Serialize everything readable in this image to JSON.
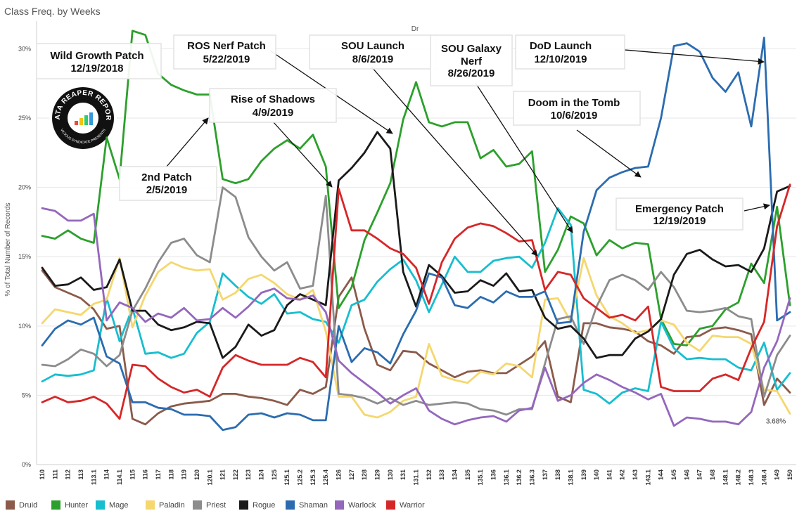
{
  "chart_data": {
    "type": "line",
    "title": "Class Freq. by Weeks",
    "column_header": "Dr",
    "ylabel": "% of Total Number of Records",
    "ylim": [
      0,
      32
    ],
    "yticks": [
      0,
      5,
      10,
      15,
      20,
      25,
      30
    ],
    "ytick_labels": [
      "0%",
      "5%",
      "10%",
      "15%",
      "20%",
      "25%",
      "30%"
    ],
    "grid": true,
    "legend_position": "bottom",
    "categories": [
      "110",
      "111",
      "112",
      "113",
      "113.1",
      "114",
      "114.1",
      "115",
      "116",
      "117",
      "118",
      "119",
      "120",
      "120.1",
      "121",
      "122",
      "123",
      "124",
      "125",
      "125.1",
      "125.2",
      "125.3",
      "125.4",
      "126",
      "127",
      "128",
      "129",
      "130",
      "131",
      "131.1",
      "132",
      "133",
      "134",
      "135",
      "135.1",
      "136",
      "136.1",
      "136.2",
      "136.3",
      "137",
      "138",
      "138.1",
      "139",
      "140",
      "141",
      "142",
      "143",
      "143.1",
      "144",
      "145",
      "146",
      "147",
      "148",
      "148.1",
      "148.2",
      "148.3",
      "148.4",
      "149",
      "150"
    ],
    "series": [
      {
        "name": "Druid",
        "color": "#8B5A4A",
        "values": [
          14.0,
          12.8,
          12.4,
          12.0,
          11.2,
          9.8,
          10.0,
          3.3,
          2.9,
          3.7,
          4.2,
          4.4,
          4.5,
          4.6,
          5.1,
          5.1,
          4.9,
          4.8,
          4.6,
          4.3,
          5.4,
          5.1,
          5.6,
          12.1,
          13.5,
          9.8,
          7.2,
          6.8,
          8.2,
          8.1,
          7.3,
          6.8,
          6.3,
          6.7,
          6.8,
          6.6,
          6.6,
          7.2,
          7.8,
          8.9,
          4.9,
          4.5,
          10.2,
          10.2,
          9.9,
          9.8,
          9.6,
          8.9,
          8.6,
          8.0,
          9.2,
          9.3,
          9.8,
          9.9,
          9.7,
          9.4,
          4.3,
          6.2,
          5.2
        ]
      },
      {
        "name": "Hunter",
        "color": "#2CA02C",
        "values": [
          16.5,
          16.3,
          16.9,
          16.3,
          16.0,
          23.6,
          20.6,
          31.3,
          31.0,
          28.2,
          27.4,
          27.0,
          26.7,
          26.7,
          20.6,
          20.3,
          20.6,
          21.9,
          22.8,
          23.4,
          22.8,
          23.8,
          21.5,
          11.3,
          12.8,
          16.2,
          18.2,
          20.3,
          24.9,
          27.6,
          24.7,
          24.4,
          24.7,
          24.7,
          22.1,
          22.7,
          21.5,
          21.7,
          22.6,
          13.9,
          15.5,
          17.9,
          17.4,
          15.1,
          16.2,
          15.6,
          16.0,
          15.9,
          10.5,
          8.7,
          8.6,
          9.8,
          10.0,
          11.2,
          11.7,
          14.5,
          13.1,
          18.6,
          11.5
        ]
      },
      {
        "name": "Mage",
        "color": "#17BECF",
        "values": [
          6.0,
          6.5,
          6.4,
          6.5,
          6.8,
          12.0,
          8.9,
          11.3,
          8.0,
          8.1,
          7.7,
          8.0,
          9.5,
          10.3,
          13.8,
          12.9,
          12.1,
          11.6,
          12.3,
          10.9,
          11.0,
          10.5,
          10.3,
          8.8,
          11.5,
          11.9,
          13.2,
          14.1,
          14.8,
          13.3,
          11.0,
          13.0,
          15.0,
          13.9,
          13.9,
          14.7,
          14.9,
          15.0,
          14.2,
          16.0,
          18.5,
          17.3,
          5.4,
          5.1,
          4.4,
          5.2,
          5.5,
          5.3,
          10.3,
          8.4,
          7.6,
          7.7,
          7.6,
          7.6,
          7.0,
          6.8,
          8.8,
          5.4,
          6.6
        ]
      },
      {
        "name": "Paladin",
        "color": "#F5D76E",
        "values": [
          10.2,
          11.2,
          11.0,
          10.8,
          11.6,
          11.9,
          14.9,
          9.9,
          12.2,
          13.9,
          14.6,
          14.2,
          14.0,
          14.1,
          11.9,
          12.4,
          13.4,
          13.7,
          13.1,
          12.3,
          11.9,
          12.6,
          9.6,
          4.9,
          4.9,
          3.6,
          3.4,
          3.8,
          4.6,
          4.9,
          8.7,
          6.4,
          6.1,
          5.9,
          6.7,
          6.5,
          7.3,
          7.1,
          6.3,
          11.9,
          12.0,
          10.3,
          14.9,
          12.2,
          10.7,
          10.2,
          9.5,
          9.7,
          10.4,
          10.1,
          8.8,
          8.2,
          9.3,
          9.2,
          9.2,
          8.7,
          5.4,
          5.3,
          3.68
        ]
      },
      {
        "name": "Priest",
        "color": "#8C8C8C",
        "values": [
          7.2,
          7.1,
          7.6,
          8.3,
          8.0,
          7.1,
          7.9,
          11.1,
          12.7,
          14.6,
          16.0,
          16.3,
          15.1,
          14.6,
          20.0,
          19.3,
          16.4,
          15.0,
          14.0,
          14.6,
          12.7,
          12.9,
          19.4,
          5.1,
          5.0,
          4.8,
          4.4,
          4.8,
          4.3,
          4.6,
          4.3,
          4.4,
          4.5,
          4.4,
          4.0,
          3.9,
          3.6,
          4.0,
          4.0,
          7.3,
          10.5,
          10.7,
          8.7,
          11.4,
          13.3,
          13.7,
          13.3,
          12.6,
          13.9,
          12.8,
          11.1,
          11.0,
          11.1,
          11.3,
          10.7,
          10.5,
          4.9,
          7.9,
          9.3
        ]
      },
      {
        "name": "Rogue",
        "color": "#1A1A1A",
        "values": [
          14.2,
          12.9,
          13.0,
          13.5,
          12.6,
          12.8,
          14.8,
          11.1,
          11.1,
          10.1,
          9.7,
          9.9,
          10.3,
          10.2,
          7.7,
          8.5,
          10.1,
          9.3,
          9.7,
          11.5,
          12.3,
          11.9,
          11.5,
          20.5,
          21.4,
          22.5,
          24.0,
          22.8,
          13.9,
          11.4,
          14.4,
          13.6,
          12.4,
          12.5,
          13.3,
          12.9,
          13.8,
          12.5,
          12.6,
          10.6,
          9.8,
          10.0,
          9.1,
          7.7,
          7.9,
          7.9,
          9.1,
          9.6,
          10.5,
          13.7,
          15.2,
          15.5,
          14.8,
          14.3,
          14.4,
          13.9,
          15.6,
          19.7,
          20.1
        ]
      },
      {
        "name": "Shaman",
        "color": "#2B6CB0",
        "values": [
          8.6,
          9.8,
          10.4,
          10.1,
          10.6,
          7.8,
          7.3,
          4.5,
          4.5,
          4.1,
          4.0,
          3.6,
          3.6,
          3.5,
          2.5,
          2.7,
          3.6,
          3.7,
          3.4,
          3.7,
          3.6,
          3.2,
          3.2,
          10.0,
          7.4,
          8.4,
          8.1,
          7.3,
          9.4,
          11.1,
          13.8,
          13.5,
          11.5,
          11.3,
          12.1,
          11.7,
          12.5,
          12.1,
          12.1,
          12.5,
          10.2,
          10.3,
          16.8,
          19.8,
          20.7,
          21.1,
          21.4,
          21.5,
          25.0,
          30.2,
          30.4,
          29.8,
          27.9,
          26.9,
          28.3,
          24.4,
          30.8,
          10.4,
          11.0
        ]
      },
      {
        "name": "Warlock",
        "color": "#9467BD",
        "values": [
          18.5,
          18.3,
          17.6,
          17.6,
          18.1,
          10.4,
          11.7,
          11.3,
          10.3,
          10.9,
          10.6,
          11.3,
          10.4,
          10.5,
          11.3,
          10.6,
          11.4,
          12.4,
          12.7,
          12.0,
          11.9,
          12.2,
          11.0,
          7.5,
          6.6,
          5.9,
          5.2,
          4.4,
          5.0,
          5.5,
          3.9,
          3.3,
          2.9,
          3.2,
          3.4,
          3.5,
          3.1,
          3.9,
          4.1,
          7.0,
          4.6,
          5.0,
          5.9,
          6.5,
          6.1,
          5.6,
          5.2,
          4.7,
          5.1,
          2.8,
          3.4,
          3.3,
          3.1,
          3.1,
          2.9,
          3.8,
          7.0,
          8.9,
          12.0
        ]
      },
      {
        "name": "Warrior",
        "color": "#D62728",
        "values": [
          4.5,
          4.9,
          4.5,
          4.6,
          4.9,
          4.4,
          3.3,
          7.2,
          7.1,
          6.2,
          5.6,
          5.2,
          5.4,
          4.9,
          7.0,
          7.9,
          7.5,
          7.2,
          7.2,
          7.2,
          7.7,
          7.4,
          6.3,
          19.9,
          16.9,
          16.9,
          16.3,
          15.6,
          15.2,
          14.2,
          11.6,
          14.6,
          16.3,
          17.1,
          17.4,
          17.2,
          16.7,
          16.1,
          16.2,
          12.6,
          13.9,
          13.7,
          12.0,
          11.3,
          10.6,
          10.8,
          10.4,
          11.4,
          5.6,
          5.3,
          5.3,
          5.3,
          6.2,
          6.5,
          6.1,
          8.4,
          10.3,
          17.2,
          20.2
        ]
      }
    ],
    "data_labels": [
      {
        "series": "Paladin",
        "category": "150",
        "text": "3.68%"
      }
    ],
    "annotations": [
      {
        "id": "wild-growth",
        "lines": [
          "Wild Growth Patch",
          "12/19/2018"
        ]
      },
      {
        "id": "ros-nerf",
        "lines": [
          "ROS Nerf Patch",
          "5/22/2019"
        ]
      },
      {
        "id": "sou-launch",
        "lines": [
          "SOU Launch",
          "8/6/2019"
        ]
      },
      {
        "id": "sou-galaxy",
        "lines": [
          "SOU Galaxy",
          "Nerf",
          "8/26/2019"
        ]
      },
      {
        "id": "dod-launch",
        "lines": [
          "DoD Launch",
          "12/10/2019"
        ]
      },
      {
        "id": "rise-of-shadows",
        "lines": [
          "Rise of Shadows",
          "4/9/2019"
        ]
      },
      {
        "id": "doom-tomb",
        "lines": [
          "Doom in the Tomb",
          "10/6/2019"
        ]
      },
      {
        "id": "second-patch",
        "lines": [
          "2nd Patch",
          "2/5/2019"
        ]
      },
      {
        "id": "emergency",
        "lines": [
          "Emergency Patch",
          "12/19/2019"
        ]
      }
    ],
    "logo": {
      "title": "DATA REAPER REPORT",
      "subtitle": "VICIOUS SYNDICATE PRESENTS"
    }
  }
}
